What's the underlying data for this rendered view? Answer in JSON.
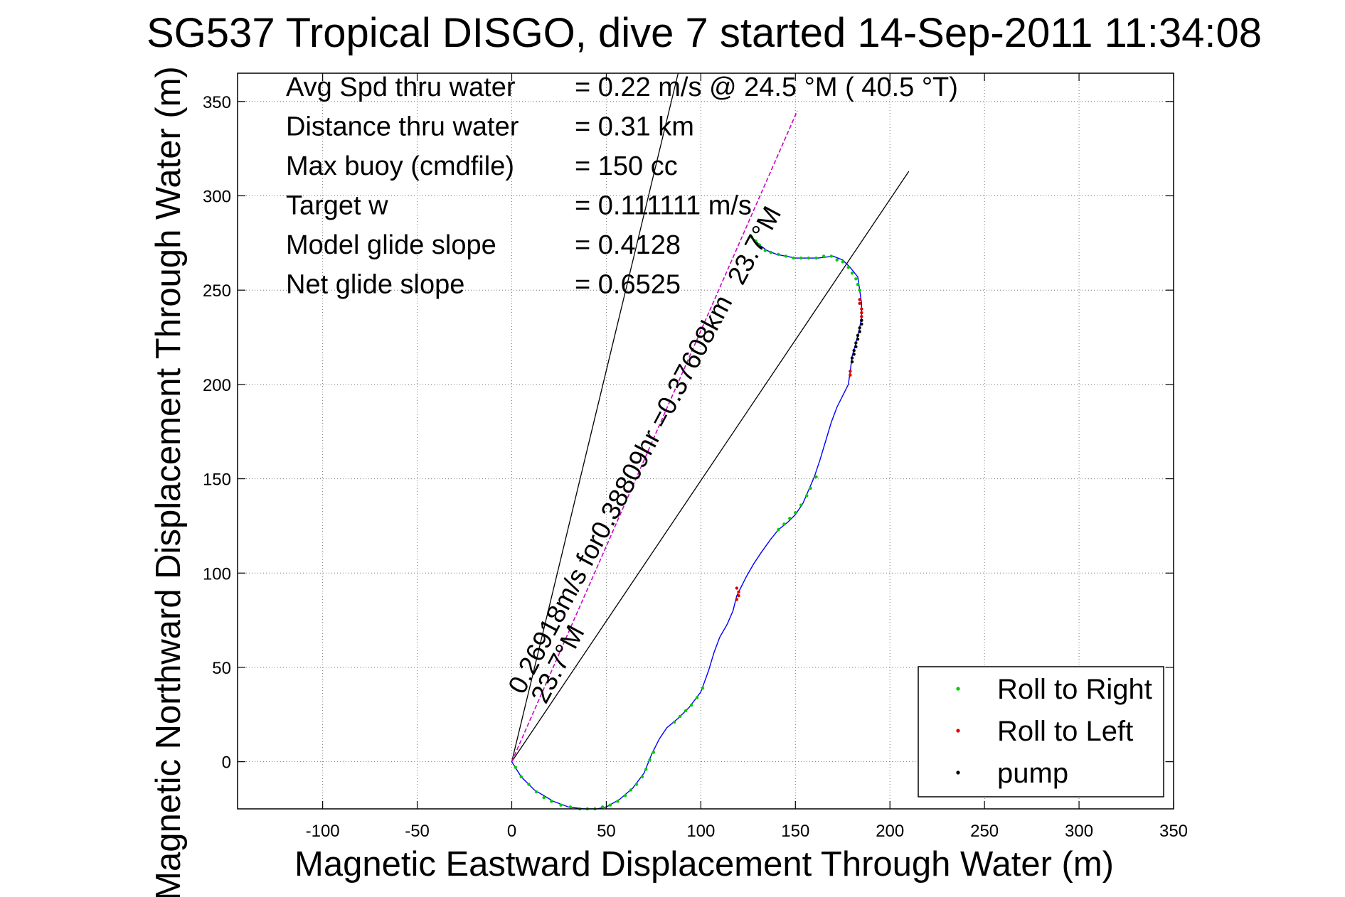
{
  "chart_data": {
    "type": "scatter",
    "title": "SG537 Tropical DISGO, dive 7 started 14-Sep-2011 11:34:08",
    "xlabel": "Magnetic Eastward Displacement Through Water (m)",
    "ylabel": "Magnetic Northward Displacement Through Water (m)",
    "xlim": [
      -145,
      350
    ],
    "ylim": [
      -25,
      365
    ],
    "xticks": [
      -100,
      -50,
      0,
      50,
      100,
      150,
      200,
      250,
      300,
      350
    ],
    "yticks": [
      0,
      50,
      100,
      150,
      200,
      250,
      300,
      350
    ],
    "xtick_labels": [
      "-100",
      "-50",
      "0",
      "50",
      "100",
      "150",
      "200",
      "250",
      "300",
      "350"
    ],
    "ytick_labels": [
      "0",
      "50",
      "100",
      "150",
      "200",
      "250",
      "300",
      "350"
    ],
    "grid": true,
    "legend_position": "bottom-right",
    "stats": [
      {
        "label": "Avg Spd thru water",
        "value": "=  0.22 m/s @  24.5 °M ( 40.5 °T)"
      },
      {
        "label": "Distance thru water",
        "value": "=  0.31 km"
      },
      {
        "label": "Max buoy (cmdfile)",
        "value": "= 150 cc"
      },
      {
        "label": "Target w",
        "value": "= 0.111111 m/s"
      },
      {
        "label": "Model glide slope",
        "value": "= 0.4128"
      },
      {
        "label": "Net glide slope",
        "value": "= 0.6525"
      }
    ],
    "annotations": [
      {
        "text": "0.26918m/s for0.38809hr =0.37608km",
        "x": 6,
        "y": 35,
        "angle_deg": 62
      },
      {
        "text": "23.7°M",
        "x": 18,
        "y": 30,
        "angle_deg": 62
      },
      {
        "text": "23.7°M",
        "x": 122,
        "y": 252,
        "angle_deg": 62
      }
    ],
    "reference_lines": [
      {
        "name": "line-a",
        "color": "#000000",
        "points": [
          [
            0,
            0
          ],
          [
            88,
            365
          ]
        ]
      },
      {
        "name": "line-b",
        "color": "#000000",
        "points": [
          [
            0,
            0
          ],
          [
            210,
            313
          ]
        ]
      },
      {
        "name": "line-heading",
        "color": "#cc00cc",
        "dashed": true,
        "points": [
          [
            0,
            0
          ],
          [
            151,
            345
          ]
        ]
      }
    ],
    "track": {
      "color": "#0000ff",
      "points": [
        [
          0,
          0
        ],
        [
          5,
          -8
        ],
        [
          12,
          -15
        ],
        [
          22,
          -21
        ],
        [
          30,
          -24
        ],
        [
          38,
          -25
        ],
        [
          45,
          -25
        ],
        [
          50,
          -24
        ],
        [
          57,
          -20
        ],
        [
          64,
          -14
        ],
        [
          70,
          -6
        ],
        [
          74,
          4
        ],
        [
          78,
          12
        ],
        [
          82,
          18
        ],
        [
          88,
          23
        ],
        [
          94,
          29
        ],
        [
          100,
          37
        ],
        [
          104,
          48
        ],
        [
          107,
          58
        ],
        [
          110,
          66
        ],
        [
          114,
          73
        ],
        [
          117,
          80
        ],
        [
          119,
          88
        ],
        [
          121,
          92
        ],
        [
          124,
          98
        ],
        [
          128,
          105
        ],
        [
          132,
          111
        ],
        [
          137,
          118
        ],
        [
          141,
          123
        ],
        [
          146,
          127
        ],
        [
          150,
          131
        ],
        [
          154,
          137
        ],
        [
          157,
          144
        ],
        [
          160,
          151
        ],
        [
          163,
          160
        ],
        [
          166,
          170
        ],
        [
          169,
          180
        ],
        [
          172,
          188
        ],
        [
          175,
          194
        ],
        [
          178,
          200
        ],
        [
          179,
          207
        ],
        [
          180,
          215
        ],
        [
          182,
          222
        ],
        [
          184,
          230
        ],
        [
          185,
          236
        ],
        [
          185,
          243
        ],
        [
          184,
          250
        ],
        [
          183,
          257
        ],
        [
          179,
          262
        ],
        [
          175,
          266
        ],
        [
          170,
          268
        ],
        [
          162,
          267
        ],
        [
          150,
          267
        ],
        [
          140,
          269
        ],
        [
          135,
          271
        ],
        [
          131,
          274
        ],
        [
          127,
          278
        ]
      ]
    },
    "series": [
      {
        "name": "Roll to Right",
        "color": "#00cc00",
        "points": [
          [
            2,
            -3
          ],
          [
            5,
            -8
          ],
          [
            9,
            -12
          ],
          [
            13,
            -16
          ],
          [
            17,
            -19
          ],
          [
            21,
            -21
          ],
          [
            26,
            -23
          ],
          [
            31,
            -24
          ],
          [
            36,
            -25
          ],
          [
            40,
            -25
          ],
          [
            44,
            -25
          ],
          [
            48,
            -24
          ],
          [
            52,
            -23
          ],
          [
            56,
            -21
          ],
          [
            60,
            -18
          ],
          [
            63,
            -15
          ],
          [
            66,
            -12
          ],
          [
            69,
            -8
          ],
          [
            71,
            -4
          ],
          [
            73,
            1
          ],
          [
            75,
            5
          ],
          [
            86,
            21
          ],
          [
            89,
            24
          ],
          [
            92,
            27
          ],
          [
            95,
            30
          ],
          [
            98,
            34
          ],
          [
            101,
            39
          ],
          [
            141,
            123
          ],
          [
            144,
            126
          ],
          [
            147,
            129
          ],
          [
            150,
            132
          ],
          [
            153,
            136
          ],
          [
            156,
            141
          ],
          [
            158,
            145
          ],
          [
            161,
            151
          ],
          [
            127,
            278
          ],
          [
            129,
            276
          ],
          [
            131,
            274
          ],
          [
            134,
            271
          ],
          [
            137,
            270
          ],
          [
            141,
            269
          ],
          [
            145,
            268
          ],
          [
            149,
            267
          ],
          [
            153,
            267
          ],
          [
            157,
            267
          ],
          [
            161,
            267
          ],
          [
            165,
            268
          ],
          [
            169,
            268
          ],
          [
            172,
            266
          ],
          [
            175,
            265
          ],
          [
            178,
            262
          ],
          [
            180,
            259
          ],
          [
            182,
            256
          ],
          [
            183,
            253
          ],
          [
            184,
            250
          ]
        ]
      },
      {
        "name": "Roll to Left",
        "color": "#dd0000",
        "points": [
          [
            119,
            86
          ],
          [
            120,
            88
          ],
          [
            120,
            90
          ],
          [
            119,
            92
          ],
          [
            179,
            205
          ],
          [
            179,
            207
          ],
          [
            185,
            234
          ],
          [
            185,
            236
          ],
          [
            185,
            238
          ],
          [
            185,
            240
          ],
          [
            184,
            243
          ],
          [
            184,
            245
          ]
        ]
      },
      {
        "name": "pump",
        "color": "#000000",
        "points": [
          [
            180,
            212
          ],
          [
            180,
            214
          ],
          [
            181,
            216
          ],
          [
            181,
            218
          ],
          [
            182,
            220
          ],
          [
            182,
            222
          ],
          [
            183,
            224
          ],
          [
            183,
            226
          ],
          [
            184,
            228
          ],
          [
            184,
            230
          ],
          [
            185,
            232
          ],
          [
            185,
            234
          ]
        ]
      }
    ]
  }
}
